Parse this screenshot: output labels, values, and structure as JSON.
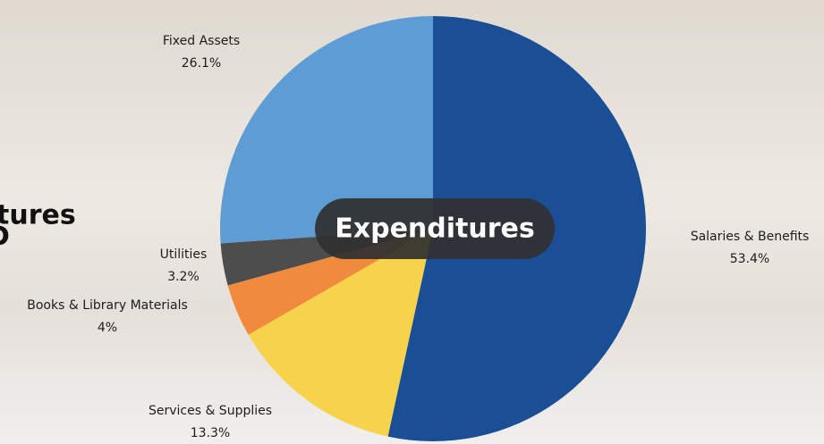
{
  "chart_data": {
    "type": "pie",
    "center_label": "Expenditures",
    "categories": [
      "Salaries & Benefits",
      "Services & Supplies",
      "Books & Library Materials",
      "Utilities",
      "Fixed Assets"
    ],
    "values": [
      53.4,
      13.3,
      4,
      3.2,
      26.1
    ],
    "value_labels": [
      "53.4%",
      "13.3%",
      "4%",
      "3.2%",
      "26.1%"
    ],
    "colors": [
      "#1b4f95",
      "#f6d34a",
      "#f08a3c",
      "#4d4d4d",
      "#5e9cd6"
    ]
  },
  "side_heading": [
    "tures",
    "D"
  ]
}
